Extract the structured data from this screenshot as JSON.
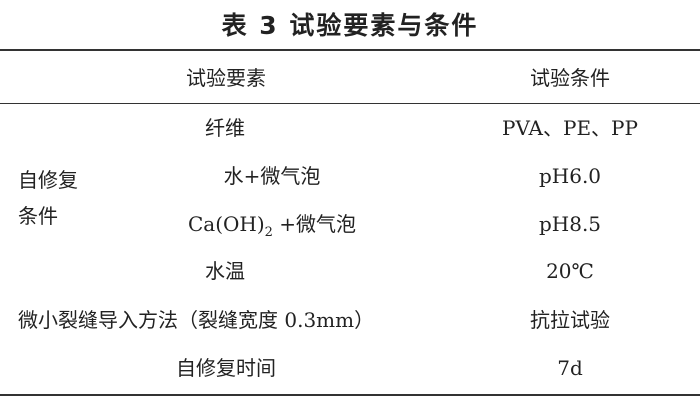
{
  "title": "表 3  试验要素与条件",
  "headers": [
    "试验要素",
    "试验条件"
  ],
  "group_label": [
    "自修复",
    "条件"
  ],
  "rows": [
    {
      "factor": "纤维",
      "condition": "PVA、PE、PP"
    },
    {
      "factor": "水+微气泡",
      "condition": "pH6.0"
    },
    {
      "factor_main": "Ca(OH)",
      "factor_sub": "2",
      "factor_tail": " +微气泡",
      "condition": "pH8.5"
    },
    {
      "factor": "水温",
      "condition": "20℃"
    },
    {
      "factor": "微小裂缝导入方法（裂缝宽度 0.3mm）",
      "condition": "抗拉试验"
    },
    {
      "factor": "自修复时间",
      "condition": "7d"
    }
  ]
}
